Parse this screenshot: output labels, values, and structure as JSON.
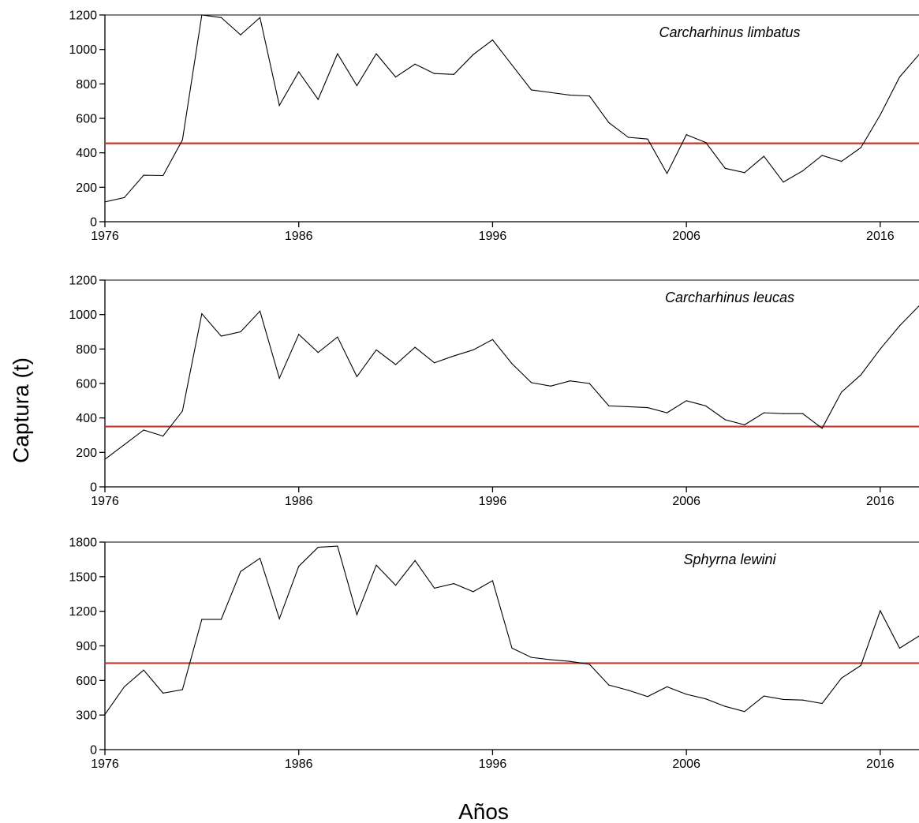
{
  "figure": {
    "xlabel": "Años",
    "ylabel": "Captura (t)"
  },
  "chart_data": [
    {
      "type": "line",
      "title": "Carcharhinus limbatus",
      "xlim": [
        1976,
        2018
      ],
      "ylim": [
        0,
        1200
      ],
      "yticks": [
        0,
        200,
        400,
        600,
        800,
        1000,
        1200
      ],
      "xticks": [
        1976,
        1986,
        1996,
        2006,
        2016
      ],
      "reference_line": {
        "y": 455,
        "color": "#c0392b"
      },
      "line_color": "#000000",
      "x": [
        1976,
        1977,
        1978,
        1979,
        1980,
        1981,
        1982,
        1983,
        1984,
        1985,
        1986,
        1987,
        1988,
        1989,
        1990,
        1991,
        1992,
        1993,
        1994,
        1995,
        1996,
        1997,
        1998,
        1999,
        2000,
        2001,
        2002,
        2003,
        2004,
        2005,
        2006,
        2007,
        2008,
        2009,
        2010,
        2011,
        2012,
        2013,
        2014,
        2015,
        2016,
        2017,
        2018
      ],
      "y": [
        115,
        140,
        270,
        268,
        475,
        1200,
        1185,
        1085,
        1185,
        675,
        870,
        710,
        975,
        790,
        975,
        840,
        915,
        860,
        855,
        970,
        1055,
        910,
        765,
        750,
        735,
        730,
        575,
        490,
        480,
        280,
        505,
        460,
        310,
        285,
        380,
        230,
        295,
        385,
        350,
        430,
        620,
        840,
        970
      ]
    },
    {
      "type": "line",
      "title": "Carcharhinus leucas",
      "xlim": [
        1976,
        2018
      ],
      "ylim": [
        0,
        1200
      ],
      "yticks": [
        0,
        200,
        400,
        600,
        800,
        1000,
        1200
      ],
      "xticks": [
        1976,
        1986,
        1996,
        2006,
        2016
      ],
      "reference_line": {
        "y": 350,
        "color": "#c0392b"
      },
      "line_color": "#000000",
      "x": [
        1976,
        1977,
        1978,
        1979,
        1980,
        1981,
        1982,
        1983,
        1984,
        1985,
        1986,
        1987,
        1988,
        1989,
        1990,
        1991,
        1992,
        1993,
        1994,
        1995,
        1996,
        1997,
        1998,
        1999,
        2000,
        2001,
        2002,
        2003,
        2004,
        2005,
        2006,
        2007,
        2008,
        2009,
        2010,
        2011,
        2012,
        2013,
        2014,
        2015,
        2016,
        2017,
        2018
      ],
      "y": [
        160,
        245,
        330,
        295,
        440,
        1005,
        875,
        900,
        1020,
        630,
        885,
        780,
        870,
        640,
        795,
        710,
        810,
        720,
        760,
        795,
        855,
        715,
        605,
        585,
        615,
        600,
        470,
        465,
        460,
        430,
        500,
        470,
        390,
        360,
        430,
        425,
        425,
        340,
        550,
        650,
        800,
        935,
        1050
      ]
    },
    {
      "type": "line",
      "title": "Sphyrna lewini",
      "xlim": [
        1976,
        2018
      ],
      "ylim": [
        0,
        1800
      ],
      "yticks": [
        0,
        300,
        600,
        900,
        1200,
        1500,
        1800
      ],
      "xticks": [
        1976,
        1986,
        1996,
        2006,
        2016
      ],
      "reference_line": {
        "y": 750,
        "color": "#c0392b"
      },
      "line_color": "#000000",
      "x": [
        1976,
        1977,
        1978,
        1979,
        1980,
        1981,
        1982,
        1983,
        1984,
        1985,
        1986,
        1987,
        1988,
        1989,
        1990,
        1991,
        1992,
        1993,
        1994,
        1995,
        1996,
        1997,
        1998,
        1999,
        2000,
        2001,
        2002,
        2003,
        2004,
        2005,
        2006,
        2007,
        2008,
        2009,
        2010,
        2011,
        2012,
        2013,
        2014,
        2015,
        2016,
        2017,
        2018
      ],
      "y": [
        305,
        545,
        690,
        490,
        520,
        1130,
        1130,
        1545,
        1660,
        1135,
        1590,
        1755,
        1765,
        1170,
        1600,
        1425,
        1640,
        1400,
        1440,
        1370,
        1465,
        880,
        800,
        780,
        765,
        740,
        560,
        515,
        460,
        545,
        480,
        440,
        375,
        330,
        465,
        435,
        430,
        400,
        620,
        730,
        1205,
        880,
        985
      ]
    }
  ]
}
